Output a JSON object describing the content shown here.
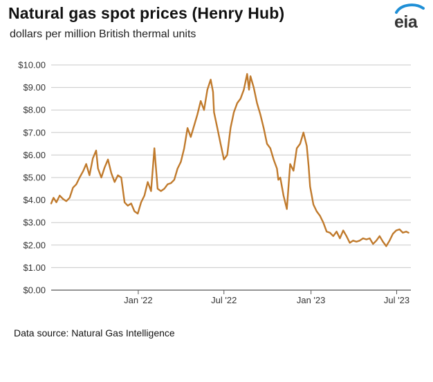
{
  "title": "Natural gas spot prices (Henry Hub)",
  "subtitle": "dollars per million British thermal units",
  "source": "Data source: Natural Gas Intelligence",
  "logo": {
    "text": "eia",
    "icon": "eia-logo-icon",
    "accent": "#1f8fd6"
  },
  "colors": {
    "line": "#c07a2c",
    "grid": "#c8c8c8",
    "axis": "#555555"
  },
  "chart_data": {
    "type": "line",
    "title": "Natural gas spot prices (Henry Hub)",
    "ylabel": "dollars per million British thermal units",
    "ylim": [
      0,
      10
    ],
    "xlim": [
      "2021-07-01",
      "2023-07-31"
    ],
    "yticks": [
      0,
      1,
      2,
      3,
      4,
      5,
      6,
      7,
      8,
      9,
      10
    ],
    "ytick_labels": [
      "$0.00",
      "$1.00",
      "$2.00",
      "$3.00",
      "$4.00",
      "$5.00",
      "$6.00",
      "$7.00",
      "$8.00",
      "$9.00",
      "$10.00"
    ],
    "xticks": [
      {
        "date": "2022-01-01",
        "label": "Jan '22"
      },
      {
        "date": "2022-07-01",
        "label": "Jul '22"
      },
      {
        "date": "2023-01-01",
        "label": "Jan '23"
      },
      {
        "date": "2023-07-01",
        "label": "Jul '23"
      }
    ],
    "grid": true,
    "series": [
      {
        "dates": [
          "2021-07-01",
          "2021-07-06",
          "2021-07-12",
          "2021-07-19",
          "2021-07-26",
          "2021-08-02",
          "2021-08-09",
          "2021-08-16",
          "2021-08-23",
          "2021-08-30",
          "2021-09-07",
          "2021-09-13",
          "2021-09-20",
          "2021-09-27",
          "2021-10-04",
          "2021-10-08",
          "2021-10-15",
          "2021-10-22",
          "2021-10-29",
          "2021-11-05",
          "2021-11-12",
          "2021-11-19",
          "2021-11-26",
          "2021-12-03",
          "2021-12-10",
          "2021-12-17",
          "2021-12-24",
          "2021-12-31",
          "2022-01-07",
          "2022-01-14",
          "2022-01-21",
          "2022-01-28",
          "2022-02-04",
          "2022-02-11",
          "2022-02-18",
          "2022-02-25",
          "2022-03-04",
          "2022-03-11",
          "2022-03-18",
          "2022-03-25",
          "2022-04-01",
          "2022-04-08",
          "2022-04-15",
          "2022-04-22",
          "2022-04-29",
          "2022-05-06",
          "2022-05-13",
          "2022-05-20",
          "2022-05-27",
          "2022-06-03",
          "2022-06-08",
          "2022-06-10",
          "2022-06-17",
          "2022-06-24",
          "2022-07-01",
          "2022-07-08",
          "2022-07-15",
          "2022-07-22",
          "2022-07-29",
          "2022-08-05",
          "2022-08-12",
          "2022-08-19",
          "2022-08-23",
          "2022-08-26",
          "2022-09-02",
          "2022-09-09",
          "2022-09-16",
          "2022-09-23",
          "2022-09-30",
          "2022-10-07",
          "2022-10-14",
          "2022-10-21",
          "2022-10-24",
          "2022-10-28",
          "2022-11-04",
          "2022-11-11",
          "2022-11-18",
          "2022-11-25",
          "2022-12-02",
          "2022-12-09",
          "2022-12-16",
          "2022-12-23",
          "2022-12-27",
          "2022-12-30",
          "2023-01-06",
          "2023-01-13",
          "2023-01-20",
          "2023-01-27",
          "2023-02-03",
          "2023-02-10",
          "2023-02-17",
          "2023-02-24",
          "2023-03-03",
          "2023-03-10",
          "2023-03-17",
          "2023-03-24",
          "2023-03-31",
          "2023-04-07",
          "2023-04-14",
          "2023-04-21",
          "2023-04-28",
          "2023-05-05",
          "2023-05-12",
          "2023-05-19",
          "2023-05-26",
          "2023-06-02",
          "2023-06-09",
          "2023-06-16",
          "2023-06-23",
          "2023-06-30",
          "2023-07-07",
          "2023-07-14",
          "2023-07-21",
          "2023-07-26"
        ],
        "values": [
          3.85,
          4.1,
          3.9,
          4.2,
          4.05,
          3.95,
          4.1,
          4.55,
          4.7,
          5.0,
          5.3,
          5.6,
          5.1,
          5.85,
          6.2,
          5.4,
          5.0,
          5.45,
          5.8,
          5.2,
          4.8,
          5.1,
          5.0,
          3.9,
          3.75,
          3.85,
          3.5,
          3.4,
          3.9,
          4.2,
          4.8,
          4.4,
          6.3,
          4.5,
          4.4,
          4.5,
          4.7,
          4.75,
          4.9,
          5.4,
          5.7,
          6.3,
          7.2,
          6.8,
          7.3,
          7.8,
          8.4,
          8.0,
          8.9,
          9.35,
          8.8,
          7.9,
          7.2,
          6.5,
          5.8,
          6.0,
          7.2,
          7.9,
          8.3,
          8.5,
          8.9,
          9.6,
          8.9,
          9.5,
          9.0,
          8.3,
          7.8,
          7.2,
          6.5,
          6.3,
          5.8,
          5.4,
          4.9,
          5.0,
          4.2,
          3.6,
          5.6,
          5.3,
          6.3,
          6.5,
          7.0,
          6.4,
          5.5,
          4.6,
          3.8,
          3.5,
          3.3,
          3.0,
          2.6,
          2.55,
          2.4,
          2.6,
          2.3,
          2.65,
          2.4,
          2.1,
          2.2,
          2.15,
          2.2,
          2.3,
          2.25,
          2.3,
          2.05,
          2.2,
          2.4,
          2.15,
          1.95,
          2.2,
          2.5,
          2.65,
          2.7,
          2.55,
          2.6,
          2.55
        ]
      }
    ]
  }
}
